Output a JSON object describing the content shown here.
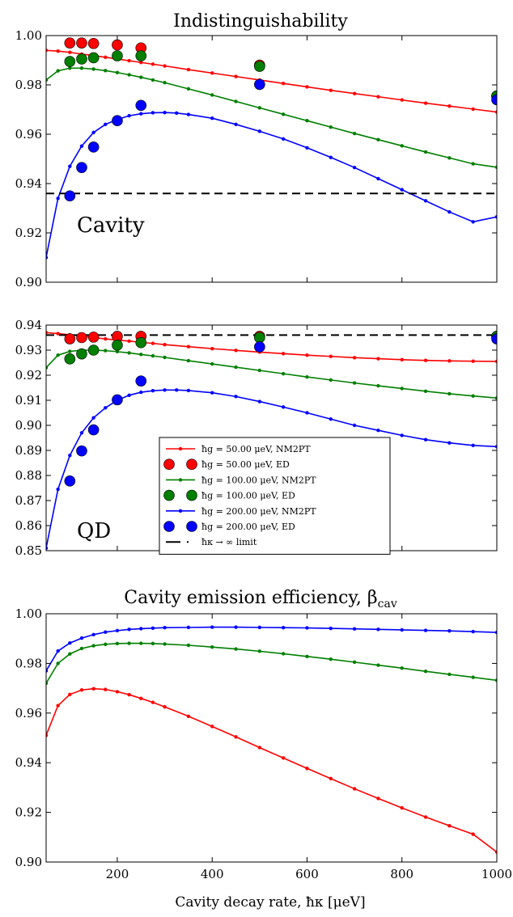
{
  "figure": {
    "xlabel": "Cavity decay rate, ħκ [μeV]"
  },
  "colors": {
    "red": "#ff0000",
    "green": "#007f00",
    "blue": "#0000ff",
    "limit": "#000000"
  },
  "chart_data": [
    {
      "type": "line",
      "title": "Indistinguishability",
      "annotation": "Cavity",
      "xlim": [
        50,
        1000
      ],
      "ylim": [
        0.9,
        1.0
      ],
      "x_ticks": [
        200,
        400,
        600,
        800,
        1000
      ],
      "y_ticks": [
        "1.00",
        "0.98",
        "0.96",
        "0.94",
        "0.92",
        "0.90"
      ],
      "x_tick_labels_shown": false,
      "series": [
        {
          "name": "",
          "color": "red",
          "kind": "line",
          "x": [
            50,
            75,
            100,
            125,
            150,
            175,
            200,
            225,
            250,
            275,
            300,
            350,
            400,
            450,
            500,
            550,
            600,
            650,
            700,
            750,
            800,
            850,
            900,
            950,
            1000
          ],
          "y": [
            0.994,
            0.9937,
            0.9932,
            0.9925,
            0.9919,
            0.9912,
            0.9905,
            0.9898,
            0.9891,
            0.9884,
            0.9877,
            0.9862,
            0.9848,
            0.9834,
            0.982,
            0.9806,
            0.9792,
            0.9778,
            0.9765,
            0.9752,
            0.9739,
            0.9726,
            0.9714,
            0.9702,
            0.969
          ]
        },
        {
          "name": "",
          "color": "red",
          "kind": "markers",
          "x": [
            100,
            125,
            150,
            200,
            250,
            500,
            1000
          ],
          "y": [
            0.997,
            0.997,
            0.9968,
            0.9962,
            0.995,
            0.988,
            0.9755
          ]
        },
        {
          "name": "",
          "color": "green",
          "kind": "line",
          "x": [
            50,
            75,
            100,
            125,
            150,
            175,
            200,
            225,
            250,
            275,
            300,
            350,
            400,
            450,
            500,
            550,
            600,
            650,
            700,
            750,
            800,
            850,
            900,
            950,
            1000
          ],
          "y": [
            0.982,
            0.9857,
            0.9868,
            0.9868,
            0.9864,
            0.9858,
            0.985,
            0.9841,
            0.9831,
            0.982,
            0.9809,
            0.9784,
            0.9759,
            0.9733,
            0.9707,
            0.9681,
            0.9655,
            0.9629,
            0.9603,
            0.9578,
            0.9553,
            0.9528,
            0.9504,
            0.948,
            0.9466
          ]
        },
        {
          "name": "",
          "color": "green",
          "kind": "markers",
          "x": [
            100,
            125,
            150,
            200,
            250,
            500,
            1000
          ],
          "y": [
            0.9895,
            0.9905,
            0.991,
            0.9918,
            0.9918,
            0.9875,
            0.9755
          ]
        },
        {
          "name": "",
          "color": "blue",
          "kind": "line",
          "x": [
            50,
            75,
            100,
            125,
            150,
            175,
            200,
            225,
            250,
            275,
            300,
            325,
            350,
            400,
            450,
            500,
            550,
            600,
            650,
            700,
            750,
            800,
            850,
            900,
            950,
            1000
          ],
          "y": [
            0.91,
            0.934,
            0.947,
            0.9552,
            0.9607,
            0.964,
            0.966,
            0.9675,
            0.9683,
            0.9687,
            0.9688,
            0.9686,
            0.968,
            0.9665,
            0.964,
            0.9612,
            0.9581,
            0.9545,
            0.9506,
            0.9465,
            0.942,
            0.9375,
            0.933,
            0.9285,
            0.9245,
            0.9265
          ]
        },
        {
          "name": "",
          "color": "blue",
          "kind": "markers",
          "x": [
            100,
            125,
            150,
            200,
            250,
            500,
            1000
          ],
          "y": [
            0.935,
            0.9465,
            0.9548,
            0.9655,
            0.9717,
            0.9802,
            0.974
          ]
        },
        {
          "name": "",
          "color": "limit",
          "kind": "dashed",
          "x": [
            50,
            1000
          ],
          "y": [
            0.936,
            0.936
          ]
        }
      ]
    },
    {
      "type": "line",
      "title": "",
      "annotation": "QD",
      "xlim": [
        50,
        1000
      ],
      "ylim": [
        0.85,
        0.94
      ],
      "x_ticks": [
        200,
        400,
        600,
        800,
        1000
      ],
      "y_ticks": [
        "0.94",
        "0.93",
        "0.92",
        "0.91",
        "0.90",
        "0.89",
        "0.88",
        "0.87",
        "0.86",
        "0.85"
      ],
      "x_tick_labels_shown": false,
      "legend": {
        "placement": "center-left",
        "entries": [
          {
            "label": "ħg = 50.00 μeV, NM2PT",
            "color": "red",
            "kind": "line"
          },
          {
            "label": "ħg = 50.00 μeV, ED",
            "color": "red",
            "kind": "markers"
          },
          {
            "label": "ħg = 100.00 μeV, NM2PT",
            "color": "green",
            "kind": "line"
          },
          {
            "label": "ħg = 100.00 μeV, ED",
            "color": "green",
            "kind": "markers"
          },
          {
            "label": "ħg = 200.00 μeV, NM2PT",
            "color": "blue",
            "kind": "line"
          },
          {
            "label": "ħg = 200.00 μeV, ED",
            "color": "blue",
            "kind": "markers"
          },
          {
            "label": "ħκ → ∞ limit",
            "color": "limit",
            "kind": "dashed"
          }
        ]
      },
      "series": [
        {
          "name": "ħg = 50.00 μeV, NM2PT",
          "color": "red",
          "kind": "line",
          "x": [
            50,
            75,
            100,
            125,
            150,
            175,
            200,
            225,
            250,
            275,
            300,
            350,
            400,
            450,
            500,
            550,
            600,
            650,
            700,
            750,
            800,
            850,
            900,
            950,
            1000
          ],
          "y": [
            0.937,
            0.9366,
            0.9361,
            0.9356,
            0.935,
            0.9345,
            0.934,
            0.9336,
            0.9331,
            0.9327,
            0.9322,
            0.9314,
            0.9306,
            0.9299,
            0.9292,
            0.9286,
            0.928,
            0.9275,
            0.927,
            0.9266,
            0.9262,
            0.9259,
            0.9257,
            0.9256,
            0.9255
          ]
        },
        {
          "name": "ħg = 50.00 μeV, ED",
          "color": "red",
          "kind": "markers",
          "x": [
            100,
            125,
            150,
            200,
            250,
            500,
            1000
          ],
          "y": [
            0.9345,
            0.935,
            0.9352,
            0.9355,
            0.9355,
            0.9355,
            0.9355
          ]
        },
        {
          "name": "ħg = 100.00 μeV, NM2PT",
          "color": "green",
          "kind": "line",
          "x": [
            50,
            75,
            100,
            125,
            150,
            175,
            200,
            225,
            250,
            275,
            300,
            350,
            400,
            450,
            500,
            550,
            600,
            650,
            700,
            750,
            800,
            850,
            900,
            950,
            1000
          ],
          "y": [
            0.923,
            0.928,
            0.9295,
            0.93,
            0.93,
            0.9298,
            0.9294,
            0.9289,
            0.9283,
            0.9277,
            0.9271,
            0.9258,
            0.9245,
            0.9232,
            0.9219,
            0.9206,
            0.9193,
            0.9181,
            0.9169,
            0.9158,
            0.9147,
            0.9136,
            0.9126,
            0.9117,
            0.9109
          ]
        },
        {
          "name": "ħg = 100.00 μeV, ED",
          "color": "green",
          "kind": "markers",
          "x": [
            100,
            125,
            150,
            200,
            250,
            500,
            1000
          ],
          "y": [
            0.9265,
            0.9285,
            0.93,
            0.932,
            0.933,
            0.935,
            0.9355
          ]
        },
        {
          "name": "ħg = 200.00 μeV, NM2PT",
          "color": "blue",
          "kind": "line",
          "x": [
            50,
            75,
            100,
            125,
            150,
            175,
            200,
            225,
            250,
            275,
            300,
            325,
            350,
            400,
            450,
            500,
            550,
            600,
            650,
            700,
            750,
            800,
            850,
            900,
            950,
            1000
          ],
          "y": [
            0.851,
            0.8745,
            0.888,
            0.897,
            0.903,
            0.907,
            0.91,
            0.912,
            0.9132,
            0.9138,
            0.9141,
            0.9141,
            0.9139,
            0.913,
            0.9115,
            0.9095,
            0.9073,
            0.905,
            0.9025,
            0.9,
            0.898,
            0.896,
            0.8943,
            0.893,
            0.892,
            0.8915
          ]
        },
        {
          "name": "ħg = 200.00 μeV, ED",
          "color": "blue",
          "kind": "markers",
          "x": [
            100,
            125,
            150,
            200,
            250,
            500,
            1000
          ],
          "y": [
            0.8778,
            0.8898,
            0.8982,
            0.9102,
            0.9177,
            0.9313,
            0.9345
          ]
        },
        {
          "name": "ħκ → ∞ limit",
          "color": "limit",
          "kind": "dashed",
          "x": [
            50,
            1000
          ],
          "y": [
            0.936,
            0.936
          ]
        }
      ]
    },
    {
      "type": "line",
      "title": "Cavity emission efficiency, β",
      "title_subscript": "cav",
      "annotation": "",
      "xlim": [
        50,
        1000
      ],
      "ylim": [
        0.9,
        1.0
      ],
      "x_ticks": [
        200,
        400,
        600,
        800,
        1000
      ],
      "x_tick_labels": [
        "200",
        "400",
        "600",
        "800",
        "1000"
      ],
      "y_ticks": [
        "1.00",
        "0.98",
        "0.96",
        "0.94",
        "0.92",
        "0.90"
      ],
      "x_tick_labels_shown": true,
      "series": [
        {
          "name": "",
          "color": "red",
          "kind": "line",
          "x": [
            50,
            75,
            100,
            125,
            150,
            175,
            200,
            225,
            250,
            275,
            300,
            350,
            400,
            450,
            500,
            550,
            600,
            650,
            700,
            750,
            800,
            850,
            900,
            950,
            1000
          ],
          "y": [
            0.951,
            0.963,
            0.9675,
            0.9693,
            0.9698,
            0.9695,
            0.9686,
            0.9674,
            0.9659,
            0.9643,
            0.9625,
            0.9587,
            0.9546,
            0.9504,
            0.9461,
            0.9419,
            0.9377,
            0.9336,
            0.9295,
            0.9256,
            0.9218,
            0.9181,
            0.9146,
            0.9112,
            0.904
          ]
        },
        {
          "name": "",
          "color": "green",
          "kind": "line",
          "x": [
            50,
            75,
            100,
            125,
            150,
            175,
            200,
            225,
            250,
            275,
            300,
            350,
            400,
            450,
            500,
            550,
            600,
            650,
            700,
            750,
            800,
            850,
            900,
            950,
            1000
          ],
          "y": [
            0.972,
            0.98,
            0.9838,
            0.986,
            0.9871,
            0.9877,
            0.988,
            0.9881,
            0.9881,
            0.988,
            0.9878,
            0.9873,
            0.9866,
            0.9858,
            0.9849,
            0.9839,
            0.9828,
            0.9817,
            0.9805,
            0.9793,
            0.9781,
            0.9768,
            0.9756,
            0.9744,
            0.9732
          ]
        },
        {
          "name": "",
          "color": "blue",
          "kind": "line",
          "x": [
            50,
            75,
            100,
            125,
            150,
            175,
            200,
            225,
            250,
            275,
            300,
            350,
            400,
            450,
            500,
            550,
            600,
            650,
            700,
            750,
            800,
            850,
            900,
            950,
            1000
          ],
          "y": [
            0.977,
            0.985,
            0.9882,
            0.9902,
            0.9916,
            0.9926,
            0.9932,
            0.9937,
            0.994,
            0.9942,
            0.9944,
            0.9945,
            0.9946,
            0.9946,
            0.9945,
            0.9944,
            0.9943,
            0.9941,
            0.9939,
            0.9937,
            0.9935,
            0.9933,
            0.9931,
            0.9928,
            0.9925
          ]
        }
      ]
    }
  ]
}
